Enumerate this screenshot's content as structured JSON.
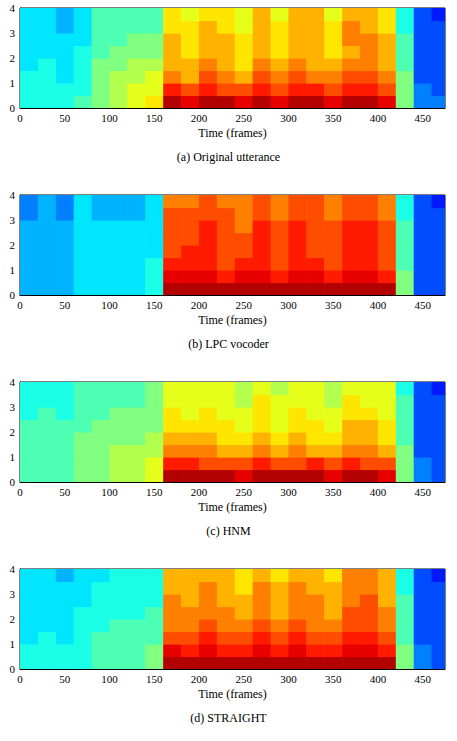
{
  "chart_data": [
    {
      "type": "heatmap",
      "title": "(a) Original utterance",
      "x_label": "Time (frames)",
      "xlim": [
        0,
        475
      ],
      "xticks": [
        0,
        50,
        100,
        150,
        200,
        250,
        300,
        350,
        400,
        450
      ],
      "ylim": [
        0,
        4
      ],
      "yticks": [
        0,
        1,
        2,
        3,
        4
      ],
      "grid": false,
      "x_bins": [
        0,
        20,
        40,
        60,
        80,
        100,
        120,
        140,
        160,
        180,
        200,
        220,
        240,
        260,
        280,
        300,
        320,
        340,
        360,
        380,
        400,
        420,
        440,
        460,
        480
      ],
      "y_bins": [
        0,
        0.5,
        1,
        1.5,
        2,
        2.5,
        3,
        3.5,
        4
      ],
      "zlim": [
        0,
        10
      ],
      "cells": [
        [
          4,
          4,
          4,
          4.5,
          5,
          5.5,
          6,
          6.5,
          9.5,
          9,
          9.5,
          9.5,
          9,
          9.5,
          9,
          9.5,
          9.5,
          9,
          9.5,
          9.5,
          9,
          5,
          2.5,
          2.5
        ],
        [
          4,
          4,
          4,
          4,
          5,
          5.5,
          6,
          6,
          8.5,
          8,
          8.5,
          8,
          8,
          8.5,
          8,
          8.5,
          8.5,
          8,
          8.5,
          8.5,
          8,
          5,
          2.5,
          2
        ],
        [
          4,
          4,
          3.5,
          4,
          5,
          5.5,
          5.5,
          6,
          7.5,
          7,
          8,
          7.5,
          7,
          8,
          7.5,
          8,
          7.5,
          7.5,
          8,
          8,
          7.5,
          5,
          2,
          2
        ],
        [
          3.5,
          4,
          3.5,
          4,
          5,
          5,
          5.5,
          5.5,
          7,
          7,
          7.5,
          7,
          6.5,
          7.5,
          7,
          7.5,
          7,
          7,
          7.5,
          7.5,
          7,
          4.5,
          2,
          2
        ],
        [
          3.5,
          3.5,
          3.5,
          4,
          4.5,
          5,
          5,
          5,
          7,
          6.5,
          7,
          7,
          6.5,
          7,
          6.5,
          7,
          7,
          6.5,
          7,
          7.5,
          7,
          4.5,
          2,
          2
        ],
        [
          3.5,
          3.5,
          3.5,
          3.5,
          4.5,
          4.5,
          5,
          5,
          7,
          6.5,
          7,
          7,
          6.5,
          7,
          6.5,
          7,
          7,
          6.5,
          7.5,
          7.5,
          7,
          4.5,
          2,
          2
        ],
        [
          3.5,
          3.5,
          3,
          3.5,
          4.5,
          4.5,
          4.5,
          4.5,
          6.5,
          6.5,
          7,
          6.5,
          6,
          7,
          6.5,
          7,
          7,
          6.5,
          7.5,
          7,
          6.5,
          4,
          2,
          2
        ],
        [
          3.5,
          3.5,
          3,
          3.5,
          4.5,
          4.5,
          4.5,
          4.5,
          6.5,
          6,
          6.5,
          6.5,
          6,
          7,
          6,
          7,
          7,
          6,
          7,
          7,
          6.5,
          4,
          2,
          1.5
        ]
      ]
    },
    {
      "type": "heatmap",
      "title": "(b) LPC vocoder",
      "x_label": "Time (frames)",
      "xlim": [
        0,
        475
      ],
      "xticks": [
        0,
        50,
        100,
        150,
        200,
        250,
        300,
        350,
        400,
        450
      ],
      "ylim": [
        0,
        4
      ],
      "yticks": [
        0,
        1,
        2,
        3,
        4
      ],
      "grid": false,
      "x_bins": [
        0,
        20,
        40,
        60,
        80,
        100,
        120,
        140,
        160,
        180,
        200,
        220,
        240,
        260,
        280,
        300,
        320,
        340,
        360,
        380,
        400,
        420,
        440,
        460,
        480
      ],
      "y_bins": [
        0,
        0.5,
        1,
        1.5,
        2,
        2.5,
        3,
        3.5,
        4
      ],
      "zlim": [
        0,
        10
      ],
      "cells": [
        [
          3,
          3,
          3,
          3.5,
          3.5,
          3.5,
          3.5,
          4,
          9.5,
          9.5,
          9.5,
          9.5,
          9.5,
          9.5,
          9.5,
          9.5,
          9.5,
          9.5,
          9.5,
          9.5,
          9.5,
          5,
          2,
          2
        ],
        [
          3,
          3,
          3,
          3.5,
          3.5,
          3.5,
          3.5,
          4,
          9,
          9,
          9,
          8.5,
          9,
          9,
          8.5,
          9,
          9,
          8.5,
          9,
          9,
          8.5,
          5,
          2,
          2
        ],
        [
          3,
          3,
          3,
          3.5,
          3.5,
          3.5,
          3.5,
          4,
          8.5,
          8.5,
          8.5,
          8,
          8.5,
          8.5,
          8,
          8.5,
          8.5,
          8,
          8.5,
          8.5,
          8,
          4.5,
          2,
          2
        ],
        [
          3,
          3,
          3,
          3.5,
          3.5,
          3.5,
          3.5,
          3.5,
          8,
          8.5,
          8.5,
          8,
          8,
          8.5,
          8,
          8.5,
          8,
          8,
          8.5,
          8.5,
          8,
          4.5,
          2,
          2
        ],
        [
          3,
          3,
          3,
          3.5,
          3.5,
          3.5,
          3.5,
          3.5,
          8,
          8,
          8.5,
          8,
          8,
          8.5,
          8,
          8.5,
          8,
          8,
          8.5,
          8.5,
          8,
          4.5,
          2,
          2
        ],
        [
          3,
          3,
          3,
          3.5,
          3.5,
          3.5,
          3.5,
          3.5,
          8,
          8,
          8.5,
          8,
          7.5,
          8.5,
          8,
          8.5,
          8,
          8,
          8.5,
          8.5,
          8,
          4.5,
          2,
          2
        ],
        [
          2.5,
          3,
          2.5,
          3.5,
          3,
          3,
          3,
          3.5,
          8,
          8,
          8,
          8,
          7.5,
          8,
          7.5,
          8,
          8,
          7.5,
          8,
          8,
          7.5,
          4,
          2,
          2
        ],
        [
          2.5,
          3,
          2.5,
          3.5,
          3,
          3,
          3,
          3.5,
          7.5,
          7.5,
          8,
          7.5,
          7.5,
          8,
          7.5,
          8,
          8,
          7.5,
          8,
          8,
          7.5,
          4,
          2,
          1.5
        ]
      ]
    },
    {
      "type": "heatmap",
      "title": "(c) HNM",
      "x_label": "Time (frames)",
      "xlim": [
        0,
        475
      ],
      "xticks": [
        0,
        50,
        100,
        150,
        200,
        250,
        300,
        350,
        400,
        450
      ],
      "ylim": [
        0,
        4
      ],
      "yticks": [
        0,
        1,
        2,
        3,
        4
      ],
      "grid": false,
      "x_bins": [
        0,
        20,
        40,
        60,
        80,
        100,
        120,
        140,
        160,
        180,
        200,
        220,
        240,
        260,
        280,
        300,
        320,
        340,
        360,
        380,
        400,
        420,
        440,
        460,
        480
      ],
      "y_bins": [
        0,
        0.5,
        1,
        1.5,
        2,
        2.5,
        3,
        3.5,
        4
      ],
      "zlim": [
        0,
        10
      ],
      "cells": [
        [
          4.5,
          4.5,
          4.5,
          5,
          5,
          5.5,
          5.5,
          6,
          9.5,
          9.5,
          9.5,
          9.5,
          9,
          9.5,
          9.5,
          9.5,
          9.5,
          9,
          9.5,
          9.5,
          9,
          5,
          2.5,
          2
        ],
        [
          4.5,
          4.5,
          4.5,
          5,
          5,
          5.5,
          5.5,
          6,
          8.5,
          8.5,
          8,
          8,
          8,
          8.5,
          8,
          8,
          8.5,
          8,
          8.5,
          8,
          8,
          5,
          2.5,
          2
        ],
        [
          4.5,
          4.5,
          4.5,
          5,
          5,
          5.5,
          5.5,
          5.5,
          7.5,
          7.5,
          7.5,
          7,
          7,
          7.5,
          7,
          7.5,
          7,
          7,
          7.5,
          7.5,
          7,
          5,
          2,
          2
        ],
        [
          4.5,
          4.5,
          4.5,
          5,
          5,
          5,
          5,
          5.5,
          7,
          7,
          7,
          6.5,
          6.5,
          7,
          6.5,
          7,
          6.5,
          6.5,
          7,
          7,
          6.5,
          4.5,
          2,
          2
        ],
        [
          4.5,
          4.5,
          4.5,
          4.5,
          5,
          5,
          5,
          5,
          6.5,
          6.5,
          6.5,
          6.5,
          6,
          6.5,
          6,
          6.5,
          6.5,
          6,
          7,
          7,
          6.5,
          4.5,
          2,
          2
        ],
        [
          4,
          4.5,
          4,
          4.5,
          4.5,
          5,
          5,
          5,
          6.5,
          6,
          6.5,
          6,
          6,
          6.5,
          6,
          6.5,
          6,
          6,
          6.5,
          6.5,
          6,
          4.5,
          2,
          2
        ],
        [
          4,
          4,
          4,
          4.5,
          4.5,
          4.5,
          4.5,
          5,
          6,
          6,
          6,
          6,
          5.5,
          6.5,
          6,
          6,
          6,
          5.5,
          6.5,
          6,
          6,
          4.5,
          2,
          2
        ],
        [
          4,
          4,
          4,
          4.5,
          4.5,
          4.5,
          4.5,
          5,
          6,
          6,
          6,
          6,
          5.5,
          6,
          5.5,
          6,
          6,
          5.5,
          6,
          6,
          6,
          4,
          2,
          1.5
        ]
      ]
    },
    {
      "type": "heatmap",
      "title": "(d) STRAIGHT",
      "x_label": "Time (frames)",
      "xlim": [
        0,
        475
      ],
      "xticks": [
        0,
        50,
        100,
        150,
        200,
        250,
        300,
        350,
        400,
        450
      ],
      "ylim": [
        0,
        4
      ],
      "yticks": [
        0,
        1,
        2,
        3,
        4
      ],
      "grid": false,
      "x_bins": [
        0,
        20,
        40,
        60,
        80,
        100,
        120,
        140,
        160,
        180,
        200,
        220,
        240,
        260,
        280,
        300,
        320,
        340,
        360,
        380,
        400,
        420,
        440,
        460,
        480
      ],
      "y_bins": [
        0,
        0.5,
        1,
        1.5,
        2,
        2.5,
        3,
        3.5,
        4
      ],
      "zlim": [
        0,
        10
      ],
      "cells": [
        [
          4,
          4,
          4,
          4,
          4.5,
          4.5,
          4.5,
          5,
          9.5,
          9.5,
          9.5,
          9.5,
          9.5,
          9.5,
          9.5,
          9.5,
          9.5,
          9.5,
          9.5,
          9.5,
          9.5,
          5,
          2.5,
          2
        ],
        [
          4,
          4,
          4,
          4,
          4.5,
          4.5,
          4.5,
          5,
          9,
          8.5,
          9,
          8.5,
          8.5,
          9,
          8.5,
          9,
          8.5,
          8.5,
          9,
          9,
          8.5,
          5,
          2.5,
          2
        ],
        [
          3.5,
          4,
          3.5,
          4,
          4.5,
          4.5,
          4.5,
          4.5,
          8,
          8,
          8.5,
          8,
          8,
          8.5,
          8,
          8.5,
          8,
          8,
          8.5,
          8.5,
          8,
          4.5,
          2,
          2
        ],
        [
          3.5,
          3.5,
          3.5,
          4,
          4,
          4.5,
          4.5,
          4.5,
          7.5,
          7.5,
          8,
          7.5,
          7.5,
          8,
          7.5,
          8,
          7.5,
          7.5,
          8,
          8,
          7.5,
          4.5,
          2,
          2
        ],
        [
          3.5,
          3.5,
          3.5,
          4,
          4,
          4,
          4,
          4.5,
          7.5,
          7.5,
          7.5,
          7.5,
          7,
          7.5,
          7,
          7.5,
          7.5,
          7,
          8,
          8,
          7.5,
          4.5,
          2,
          2
        ],
        [
          3.5,
          3.5,
          3.5,
          3.5,
          4,
          4,
          4,
          4,
          7.5,
          7,
          7.5,
          7,
          7,
          7.5,
          7,
          7.5,
          7.5,
          7,
          7.5,
          8,
          7,
          4.5,
          2,
          2
        ],
        [
          3.5,
          3.5,
          3.5,
          3.5,
          4,
          4,
          4,
          4,
          7,
          7,
          7.5,
          7,
          6.5,
          7.5,
          7,
          7.5,
          7,
          7,
          7.5,
          7.5,
          7,
          4,
          2,
          2
        ],
        [
          3.5,
          3.5,
          3,
          3.5,
          3.5,
          4,
          4,
          4,
          7,
          7,
          7,
          7,
          6.5,
          7,
          6.5,
          7,
          7,
          6.5,
          7.5,
          7.5,
          7,
          4,
          2,
          1.5
        ]
      ]
    }
  ]
}
